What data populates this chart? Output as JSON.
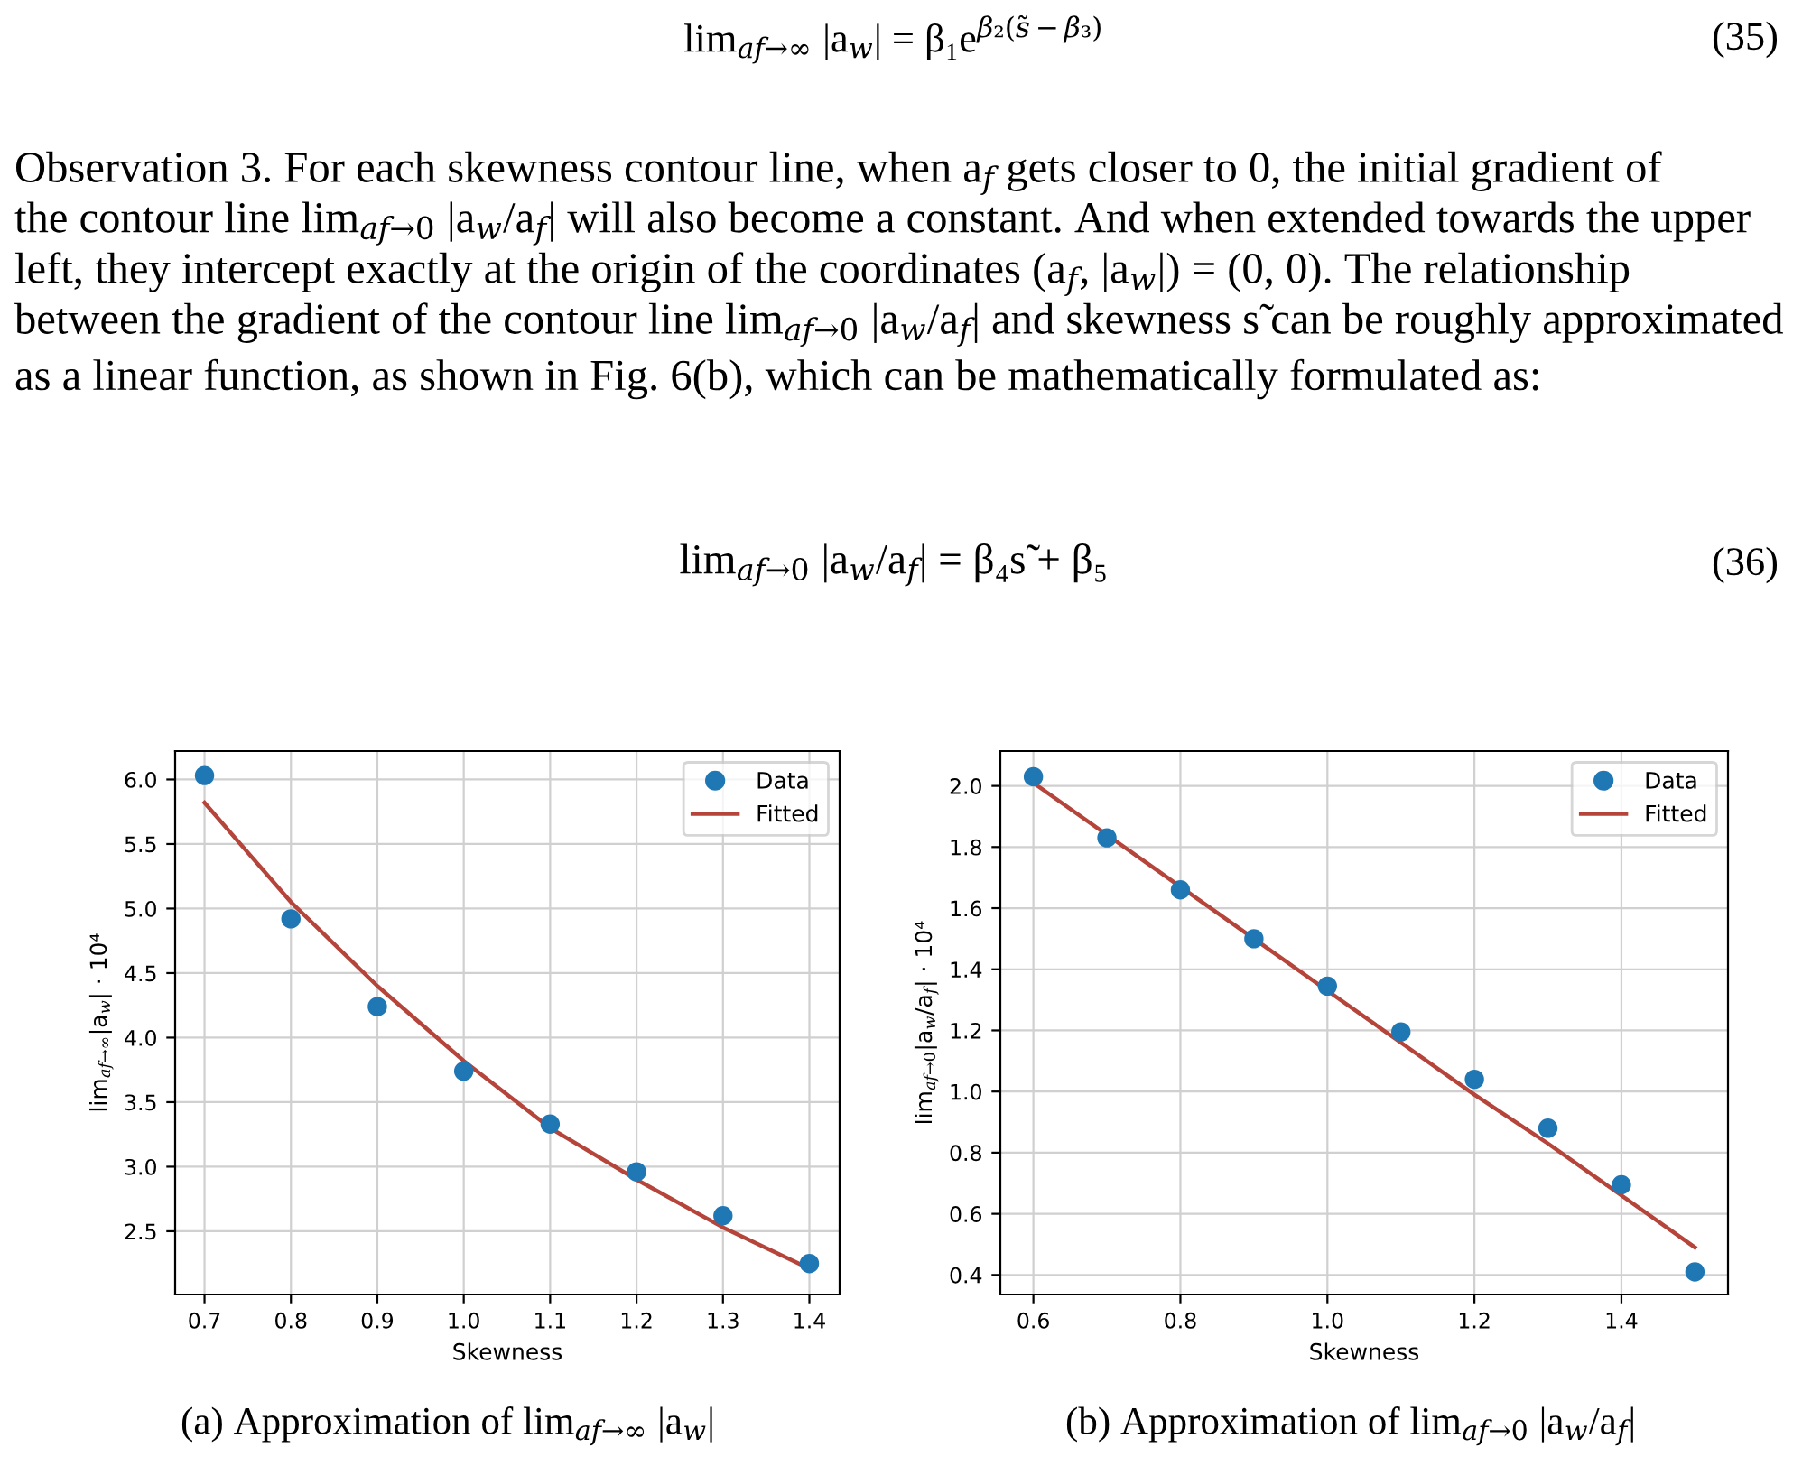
{
  "chart_data": [
    {
      "type": "scatter",
      "xlabel": "Skewness",
      "ylabel": "lim$_{af→∞}$|a$_{w}$| · 10⁴",
      "x": [
        0.7,
        0.8,
        0.9,
        1.0,
        1.1,
        1.2,
        1.3,
        1.4
      ],
      "series": [
        {
          "name": "Data",
          "color": "#1f77b4",
          "values": [
            6.03,
            4.92,
            4.24,
            3.74,
            3.33,
            2.96,
            2.62,
            2.25
          ]
        },
        {
          "name": "Fitted",
          "type": "line",
          "color": "#b5443b",
          "values": [
            5.82,
            5.05,
            4.4,
            3.82,
            3.3,
            2.9,
            2.53,
            2.21
          ]
        }
      ],
      "xlim": [
        0.666,
        1.435
      ],
      "xticks": [
        0.7,
        0.8,
        0.9,
        {
          "value": 1,
          "label": "1.0"
        },
        1.1,
        1.2,
        1.3,
        1.4
      ],
      "ylim": [
        2.01,
        6.22
      ],
      "yticks": [
        2.5,
        {
          "value": 3,
          "label": "3.0"
        },
        3.5,
        {
          "value": 4,
          "label": "4.0"
        },
        4.5,
        {
          "value": 5,
          "label": "5.0"
        },
        5.5,
        {
          "value": 6,
          "label": "6.0"
        }
      ],
      "grid": true,
      "legend": "top right",
      "annotations": [
        "lim$_{af→∞}$ |a$_{w}$| = β₁e$^{β₂(s̃−β₃)}$",
        "(35)",
        "Observation 3. For each skewness contour line, when a$_{f}$ gets closer to 0, the initial gradient of",
        "the contour line lim$_{af→0}$ |a$_{w}$/a$_{f}$| will also become a constant. And when extended towards the upper",
        "left, they intercept exactly at the origin of the coordinates (a$_{f}$, |a$_{w}$|) = (0, 0). The relationship",
        "between the gradient of the contour line lim$_{af→0}$ |a$_{w}$/a$_{f}$| and skewness s̃ can be roughly approximated",
        "as a linear function, as shown in Fig. 6(b), which can be mathematically formulated as:",
        "lim$_{af→0}$ |a$_{w}$/a$_{f}$| = β₄s̃ + β₅",
        "(36)",
        "(a) Approximation of lim$_{af→∞}$ |a$_{w}$|"
      ]
    },
    {
      "type": "scatter",
      "xlabel": "Skewness",
      "ylabel": "lim$_{af→0}$|a$_{w}$/a$_{f}$| · 10⁴",
      "x": [
        0.6,
        0.7,
        0.8,
        0.9,
        1.0,
        1.1,
        1.2,
        1.3,
        1.4,
        1.5
      ],
      "series": [
        {
          "name": "Data",
          "color": "#1f77b4",
          "values": [
            2.03,
            1.83,
            1.66,
            1.5,
            1.345,
            1.195,
            1.04,
            0.88,
            0.695,
            0.41
          ]
        },
        {
          "name": "Fitted",
          "type": "line",
          "color": "#b5443b",
          "values": [
            2.01,
            1.84,
            1.67,
            1.5,
            1.33,
            1.16,
            0.99,
            0.83,
            0.66,
            0.49
          ]
        }
      ],
      "xlim": [
        0.555,
        1.545
      ],
      "xticks": [
        0.6,
        0.8,
        {
          "value": 1,
          "label": "1.0"
        },
        1.2,
        1.4
      ],
      "ylim": [
        0.336,
        2.114
      ],
      "yticks": [
        0.4,
        0.6,
        0.8,
        {
          "value": 1,
          "label": "1.0"
        },
        1.2,
        1.4,
        1.6,
        1.8,
        {
          "value": 2,
          "label": "2.0"
        }
      ],
      "grid": true,
      "legend": "top right",
      "annotations": [
        "(b) Approximation of lim$_{af→0}$ |a$_{w}$/a$_{f}$|"
      ]
    }
  ]
}
